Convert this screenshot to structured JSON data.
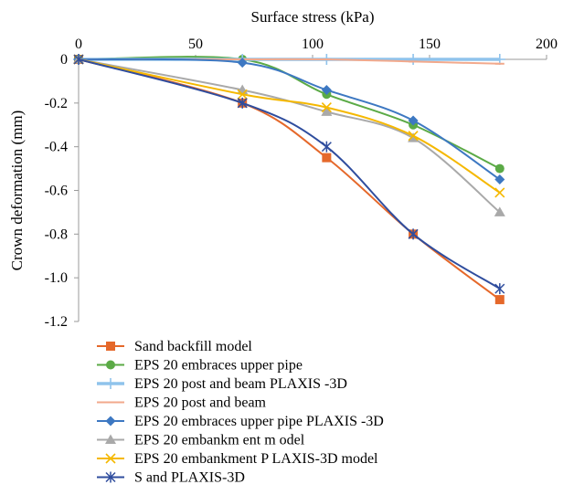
{
  "chart_data": {
    "type": "line",
    "title": "",
    "xlabel": "Surface stress (kPa)",
    "ylabel": "Crown deformation (mm)",
    "x_axis_position": "top",
    "xlim": [
      0,
      200
    ],
    "ylim": [
      -1.2,
      0
    ],
    "xticks": [
      0,
      50,
      100,
      150,
      200
    ],
    "yticks": [
      0,
      -0.2,
      -0.4,
      -0.6,
      -0.8,
      -1.0,
      -1.2
    ],
    "ytick_labels": [
      "0",
      "-0.2",
      "-0.4",
      "-0.6",
      "-0.8",
      "-1.0",
      "-1.2"
    ],
    "grid": false,
    "legend_position": "bottom",
    "series": [
      {
        "name": "Sand backfill  model",
        "color": "#E5682A",
        "marker": "square",
        "smooth": true,
        "points": [
          [
            0,
            0
          ],
          [
            70,
            -0.2
          ],
          [
            106,
            -0.45
          ],
          [
            143,
            -0.8
          ],
          [
            180,
            -1.1
          ]
        ]
      },
      {
        "name": "EPS 20 embraces upper pipe",
        "color": "#5BAA46",
        "marker": "circle",
        "smooth": true,
        "points": [
          [
            0,
            0
          ],
          [
            70,
            0.0
          ],
          [
            106,
            -0.16
          ],
          [
            143,
            -0.3
          ],
          [
            180,
            -0.5
          ]
        ]
      },
      {
        "name": "EPS 20 post and beam  PLAXIS -3D",
        "color": "#8FC3EC",
        "marker": "plus",
        "smooth": true,
        "thick": true,
        "points": [
          [
            0,
            0
          ],
          [
            70,
            0.0
          ],
          [
            106,
            0.0
          ],
          [
            143,
            0.0
          ],
          [
            180,
            0.0
          ]
        ]
      },
      {
        "name": "EPS 20 post and beam",
        "color": "#F2A98C",
        "marker": "dash",
        "smooth": true,
        "points": [
          [
            0,
            0
          ],
          [
            70,
            0.0
          ],
          [
            106,
            0.0
          ],
          [
            143,
            -0.01
          ],
          [
            180,
            -0.02
          ]
        ]
      },
      {
        "name": "EPS 20 embraces upper pipe PLAXIS -3D",
        "color": "#3D78C2",
        "marker": "diamond",
        "smooth": true,
        "points": [
          [
            0,
            0
          ],
          [
            70,
            -0.015
          ],
          [
            106,
            -0.14
          ],
          [
            143,
            -0.28
          ],
          [
            180,
            -0.55
          ]
        ]
      },
      {
        "name": "EPS 20 embankm ent m odel",
        "color": "#A9A9A9",
        "marker": "triangle",
        "smooth": true,
        "points": [
          [
            0,
            0
          ],
          [
            70,
            -0.14
          ],
          [
            106,
            -0.24
          ],
          [
            143,
            -0.36
          ],
          [
            180,
            -0.7
          ]
        ]
      },
      {
        "name": "EPS 20 embankment P LAXIS-3D model",
        "color": "#F5B800",
        "marker": "x",
        "smooth": true,
        "points": [
          [
            0,
            0
          ],
          [
            70,
            -0.16
          ],
          [
            106,
            -0.22
          ],
          [
            143,
            -0.35
          ],
          [
            180,
            -0.61
          ]
        ]
      },
      {
        "name": "S and PLAXIS-3D",
        "color": "#2F4D9E",
        "marker": "star",
        "smooth": true,
        "points": [
          [
            0,
            0
          ],
          [
            70,
            -0.2
          ],
          [
            106,
            -0.4
          ],
          [
            143,
            -0.8
          ],
          [
            180,
            -1.05
          ]
        ]
      }
    ]
  }
}
